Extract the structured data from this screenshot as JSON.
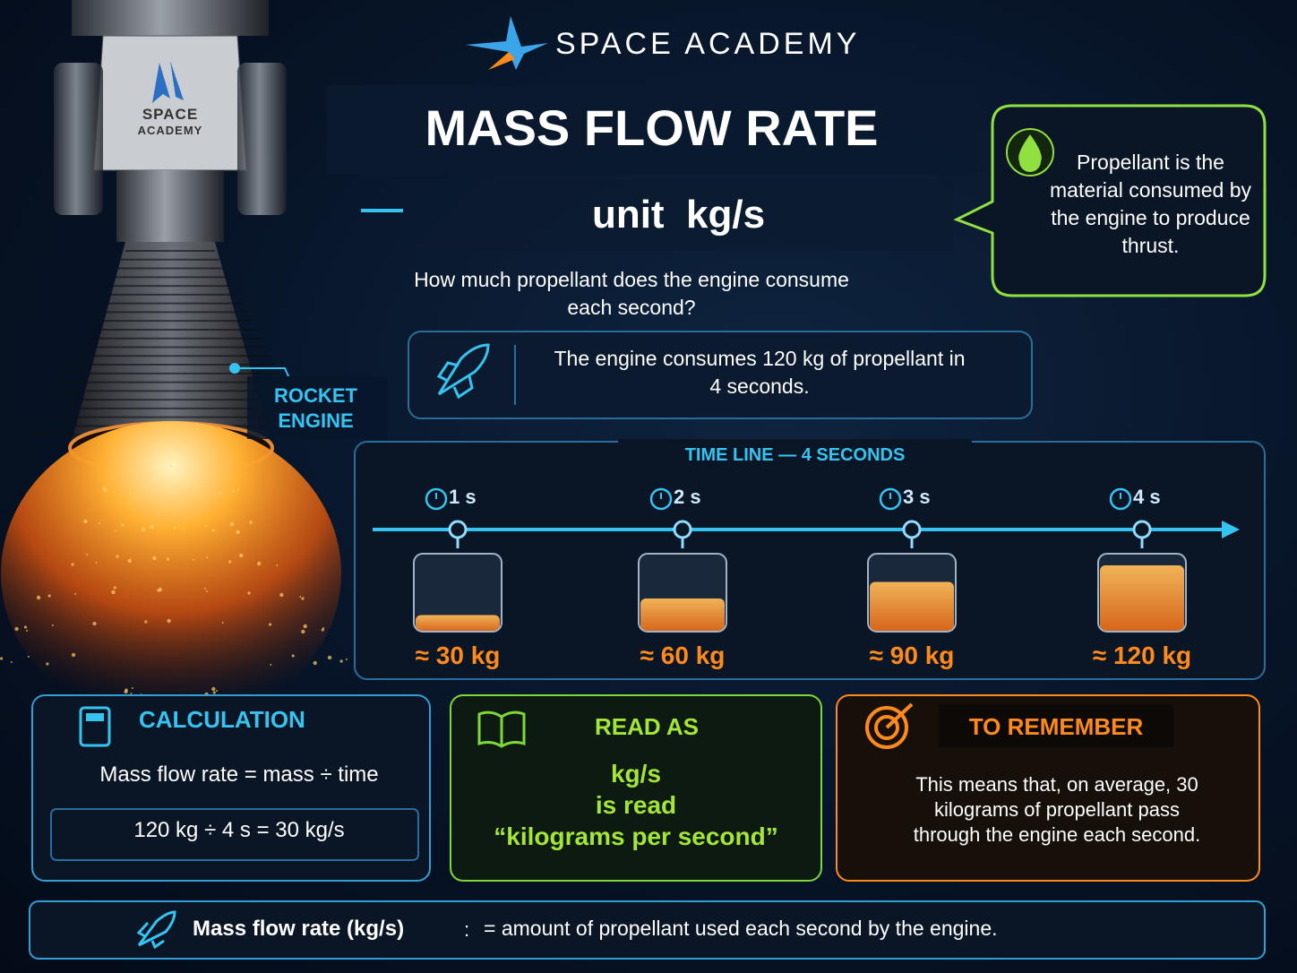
{
  "header": {
    "brand": "SPACE ACADEMY",
    "title": "MASS FLOW RATE",
    "unit": "unit  kg/s",
    "question": "How much propellant does the engine consume each second?"
  },
  "engine": {
    "badge_top": "SPACE",
    "badge_bottom": "ACADEMY",
    "label": "ROCKET ENGINE"
  },
  "callout": "Propellant is the material consumed by the engine to produce thrust.",
  "example": "The engine consumes 120 kg of propellant in 4 seconds.",
  "timeline": {
    "title": "TIME LINE — 4 SECONDS",
    "steps": [
      {
        "time": "1 s",
        "mass": "≈ 30 kg"
      },
      {
        "time": "2 s",
        "mass": "≈ 60 kg"
      },
      {
        "time": "3 s",
        "mass": "≈ 90 kg"
      },
      {
        "time": "4 s",
        "mass": "≈ 120 kg"
      }
    ]
  },
  "calculation": {
    "title": "CALCULATION",
    "formula": "Mass flow rate = mass ÷ time",
    "example": "120 kg ÷ 4 s = 30 kg/s"
  },
  "read_as": {
    "title": "READ AS",
    "lines": [
      "kg/s",
      "is read",
      "“kilograms per second”"
    ]
  },
  "remember": {
    "title": "TO REMEMBER",
    "text": "This means that, on average, 30 kilograms of propellant pass through the engine each second."
  },
  "definition": {
    "term": "Mass flow rate (kg/s)",
    "separator": ":",
    "text": "= amount of propellant used each second by the engine."
  }
}
